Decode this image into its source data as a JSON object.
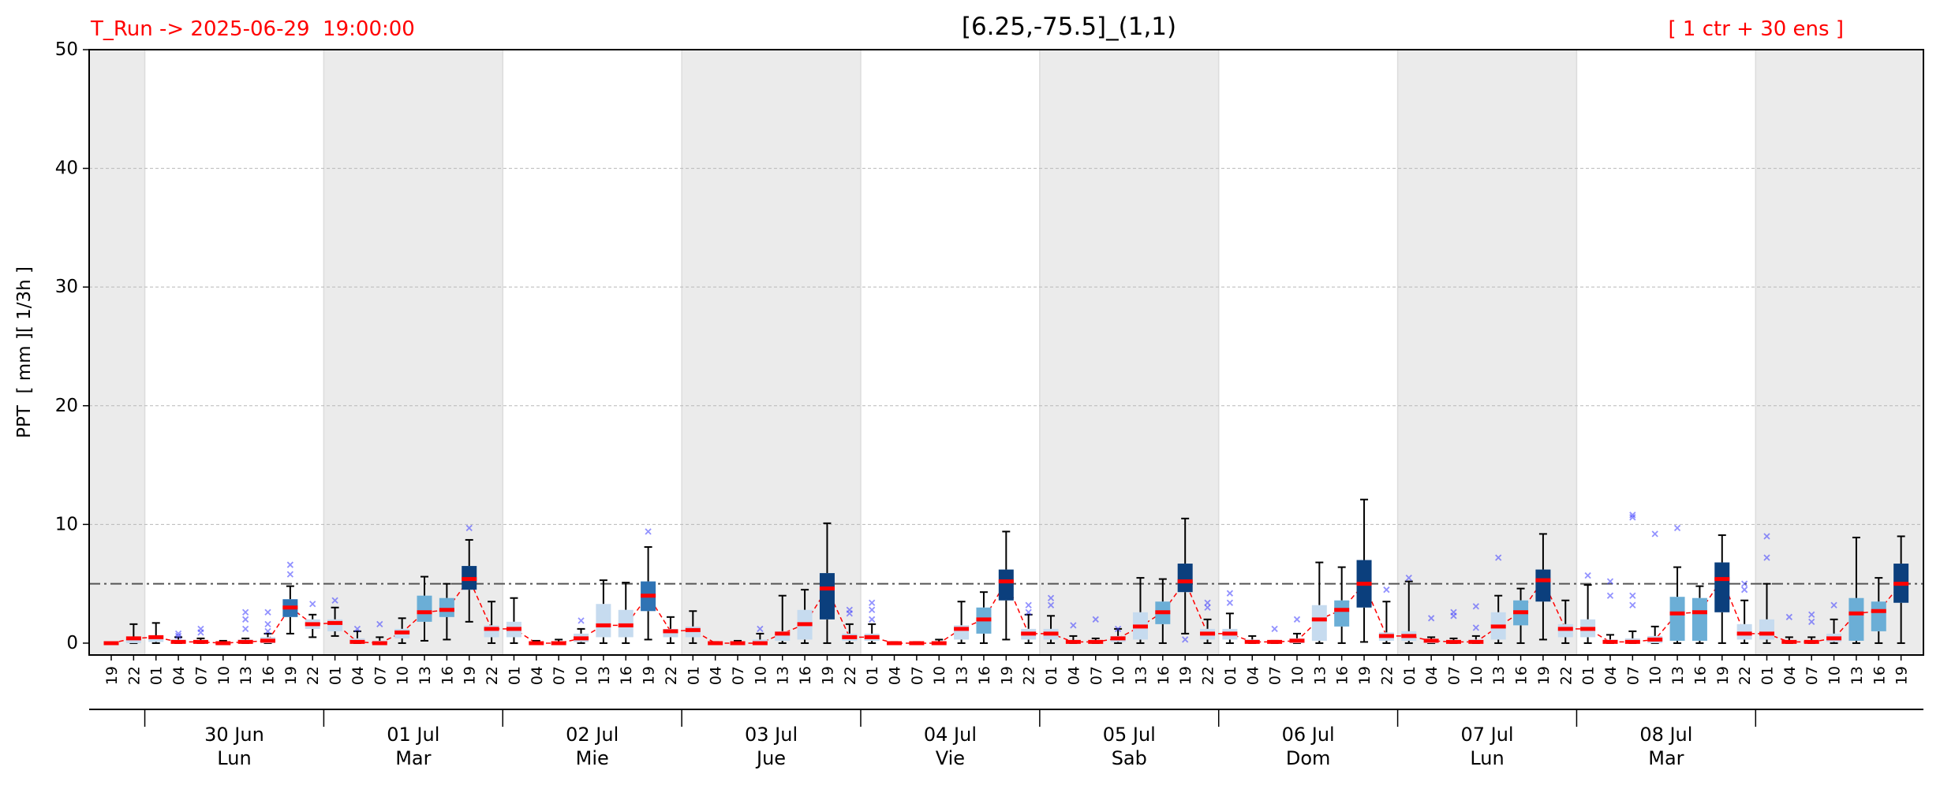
{
  "chart_data": {
    "type": "boxplot",
    "annotation": "T_Run -> 2025-06-29  19:00:00",
    "title": "[6.25,-75.5]_(1,1)",
    "subtitle": "[ 1 ctr + 30 ens ]",
    "ylabel": "PPT  [ mm ][ 1/3h ]",
    "ylim": [
      -1,
      50
    ],
    "yticks": [
      0,
      10,
      20,
      30,
      40,
      50
    ],
    "grid": true,
    "threshold": 5,
    "categories": [
      "19",
      "22",
      "01",
      "04",
      "07",
      "10",
      "13",
      "16",
      "19",
      "22",
      "01",
      "04",
      "07",
      "10",
      "13",
      "16",
      "19",
      "22",
      "01",
      "04",
      "07",
      "10",
      "13",
      "16",
      "19",
      "22",
      "01",
      "04",
      "07",
      "10",
      "13",
      "16",
      "19",
      "22",
      "01",
      "04",
      "07",
      "10",
      "13",
      "16",
      "19",
      "22",
      "01",
      "04",
      "07",
      "10",
      "13",
      "16",
      "19",
      "22",
      "01",
      "04",
      "07",
      "10",
      "13",
      "16",
      "19",
      "22",
      "01",
      "04",
      "07",
      "10",
      "13",
      "16",
      "19",
      "22",
      "01",
      "04",
      "07",
      "10",
      "13",
      "16",
      "19",
      "22",
      "01",
      "04",
      "07",
      "10",
      "13",
      "16",
      "19"
    ],
    "days": [
      {
        "date": "30 Jun",
        "weekday": "Lun"
      },
      {
        "date": "01 Jul",
        "weekday": "Mar"
      },
      {
        "date": "02 Jul",
        "weekday": "Mie"
      },
      {
        "date": "03 Jul",
        "weekday": "Jue"
      },
      {
        "date": "04 Jul",
        "weekday": "Vie"
      },
      {
        "date": "05 Jul",
        "weekday": "Sab"
      },
      {
        "date": "06 Jul",
        "weekday": "Dom"
      },
      {
        "date": "07 Jul",
        "weekday": "Lun"
      },
      {
        "date": "08 Jul",
        "weekday": "Mar"
      }
    ],
    "lows": [
      0,
      0,
      0,
      0,
      0,
      0,
      0,
      0,
      0.8,
      0.5,
      0.6,
      0,
      0,
      0,
      0.2,
      0.3,
      1.8,
      0,
      0,
      0,
      0,
      0,
      0,
      0,
      0.3,
      0,
      0,
      0,
      0,
      0,
      0,
      0,
      0,
      0,
      0,
      0,
      0,
      0,
      0,
      0,
      0.3,
      0,
      0,
      0,
      0,
      0,
      0,
      0,
      0.8,
      0,
      0,
      0,
      0,
      0,
      0,
      0,
      0.1,
      0,
      0,
      0,
      0,
      0,
      0,
      0,
      0.3,
      0,
      0,
      0,
      0,
      0,
      0,
      0,
      0,
      0,
      0,
      0,
      0,
      0,
      0,
      0,
      0
    ],
    "q1": [
      0,
      0,
      0.1,
      0,
      0,
      0,
      0,
      0,
      2.2,
      1.2,
      1.0,
      0,
      0,
      0.4,
      1.8,
      2.2,
      4.5,
      0.5,
      0.5,
      0,
      0,
      0.1,
      0.5,
      0.5,
      2.7,
      0.5,
      0.5,
      0,
      0,
      0,
      0.2,
      0.3,
      2.0,
      0.2,
      0.2,
      0,
      0,
      0,
      0.3,
      0.8,
      3.6,
      0.3,
      0.3,
      0,
      0,
      0.1,
      0.3,
      1.6,
      4.3,
      0.3,
      0.3,
      0,
      0,
      0,
      0.2,
      1.4,
      3.0,
      0.2,
      0.2,
      0,
      0,
      0,
      0.3,
      1.5,
      3.5,
      0.5,
      0.5,
      0,
      0,
      0,
      0.2,
      0.2,
      2.6,
      0.3,
      0.3,
      0,
      0,
      0.1,
      0.2,
      1.0,
      3.4
    ],
    "medians": [
      0,
      0.4,
      0.5,
      0.1,
      0.1,
      0,
      0.1,
      0.2,
      3.0,
      1.6,
      1.7,
      0.1,
      0,
      0.9,
      2.6,
      2.8,
      5.4,
      1.2,
      1.2,
      0,
      0,
      0.4,
      1.5,
      1.5,
      4.0,
      1.0,
      1.1,
      0,
      0,
      0,
      0.8,
      1.6,
      4.6,
      0.5,
      0.5,
      0,
      0,
      0,
      1.2,
      2.0,
      5.2,
      0.8,
      0.8,
      0.1,
      0.1,
      0.4,
      1.4,
      2.6,
      5.2,
      0.8,
      0.8,
      0.1,
      0.1,
      0.2,
      2.0,
      2.8,
      5.0,
      0.6,
      0.6,
      0.2,
      0.1,
      0.1,
      1.4,
      2.6,
      5.3,
      1.2,
      1.2,
      0.1,
      0.1,
      0.3,
      2.5,
      2.6,
      5.4,
      0.8,
      0.8,
      0.1,
      0.1,
      0.4,
      2.5,
      2.7,
      5.0
    ],
    "q3": [
      0,
      0.5,
      0.6,
      0.3,
      0.2,
      0.1,
      0.3,
      0.5,
      3.7,
      2.0,
      2.0,
      0.4,
      0.2,
      1.2,
      4.0,
      3.8,
      6.5,
      1.5,
      1.8,
      0.1,
      0.1,
      0.8,
      3.3,
      2.8,
      5.2,
      1.2,
      1.4,
      0,
      0.1,
      0.3,
      1.0,
      2.8,
      5.9,
      0.8,
      0.8,
      0,
      0,
      0.1,
      1.5,
      3.0,
      6.2,
      1.2,
      1.2,
      0.2,
      0.2,
      0.6,
      2.6,
      3.5,
      6.7,
      1.2,
      1.2,
      0.3,
      0.1,
      0.4,
      3.2,
      3.6,
      7.0,
      0.9,
      1.0,
      0.3,
      0.2,
      0.3,
      2.6,
      3.6,
      6.2,
      1.6,
      2.0,
      0.3,
      0.4,
      0.6,
      3.9,
      3.8,
      6.8,
      1.6,
      2.0,
      0.2,
      0.2,
      0.8,
      3.8,
      3.5,
      6.7
    ],
    "highs": [
      0,
      1.6,
      1.7,
      0.5,
      0.4,
      0.2,
      0.4,
      0.8,
      4.8,
      2.4,
      3.0,
      1.0,
      0.5,
      2.1,
      5.6,
      5.0,
      8.7,
      3.5,
      3.8,
      0.2,
      0.3,
      1.2,
      5.3,
      5.1,
      8.1,
      2.2,
      2.7,
      0.1,
      0.2,
      0.8,
      4.0,
      4.5,
      10.1,
      1.6,
      1.6,
      0.1,
      0.1,
      0.3,
      3.5,
      4.3,
      9.4,
      2.4,
      2.3,
      0.6,
      0.4,
      1.2,
      5.5,
      5.4,
      10.5,
      2.0,
      2.5,
      0.6,
      0.2,
      0.8,
      6.8,
      6.4,
      12.1,
      3.5,
      5.2,
      0.5,
      0.4,
      0.6,
      4.0,
      4.6,
      9.2,
      3.6,
      4.9,
      0.7,
      1.0,
      1.4,
      6.4,
      4.8,
      9.1,
      3.6,
      5.0,
      0.5,
      0.5,
      2.0,
      8.9,
      5.5,
      9.0
    ],
    "outliers": [
      [],
      [],
      [],
      [
        0.8,
        0.6
      ],
      [
        1.2,
        0.9
      ],
      [],
      [
        2.6,
        2.0,
        1.2
      ],
      [
        2.6,
        1.6,
        1.0
      ],
      [
        6.6,
        5.8
      ],
      [
        3.3
      ],
      [
        3.6
      ],
      [
        1.2
      ],
      [
        1.6
      ],
      [],
      [],
      [],
      [
        9.7
      ],
      [],
      [],
      [],
      [],
      [
        1.9
      ],
      [],
      [],
      [
        9.4
      ],
      [],
      [],
      [],
      [],
      [
        1.2
      ],
      [],
      [],
      [],
      [
        2.8,
        2.5
      ],
      [
        3.4,
        2.8,
        2.0
      ],
      [],
      [],
      [],
      [],
      [],
      [],
      [
        3.2,
        2.6
      ],
      [
        3.8,
        3.2
      ],
      [
        1.5
      ],
      [
        2.0
      ],
      [
        1.2
      ],
      [],
      [],
      [
        0.3
      ],
      [
        3.4,
        3.0
      ],
      [
        4.2,
        3.4
      ],
      [],
      [
        1.2
      ],
      [
        2.0
      ],
      [],
      [],
      [],
      [
        4.5
      ],
      [
        5.5
      ],
      [
        2.1
      ],
      [
        2.6,
        2.3
      ],
      [
        3.1,
        1.3
      ],
      [
        7.2
      ],
      [],
      [],
      [],
      [
        5.7
      ],
      [
        5.2,
        4.0
      ],
      [
        10.8,
        10.6,
        4.0,
        3.2
      ],
      [
        9.2
      ],
      [
        9.7
      ],
      [],
      [],
      [
        5.0,
        4.5
      ],
      [
        9.0,
        7.2
      ],
      [
        2.2
      ],
      [
        2.4,
        1.8
      ],
      [
        3.2
      ],
      [],
      [],
      []
    ],
    "palette": [
      "#c6dbef",
      "#6baed6",
      "#2f73b4",
      "#0b3f7d"
    ],
    "box_color_index": [
      0,
      0,
      0,
      0,
      0,
      0,
      0,
      0,
      2,
      0,
      0,
      0,
      0,
      0,
      1,
      1,
      3,
      0,
      0,
      0,
      0,
      0,
      0,
      0,
      2,
      0,
      0,
      0,
      0,
      0,
      0,
      0,
      3,
      0,
      0,
      0,
      0,
      0,
      0,
      1,
      3,
      0,
      0,
      0,
      0,
      0,
      0,
      1,
      3,
      0,
      0,
      0,
      0,
      0,
      0,
      1,
      3,
      0,
      0,
      0,
      0,
      0,
      0,
      1,
      3,
      0,
      0,
      0,
      0,
      0,
      1,
      1,
      3,
      0,
      0,
      0,
      0,
      0,
      1,
      1,
      3
    ],
    "median_color": "#ff0000",
    "outlier_color": "#3a3aff",
    "threshold_color": "#555555",
    "shade_color": "#ebebeb",
    "annotation_color": "#ff0000"
  }
}
